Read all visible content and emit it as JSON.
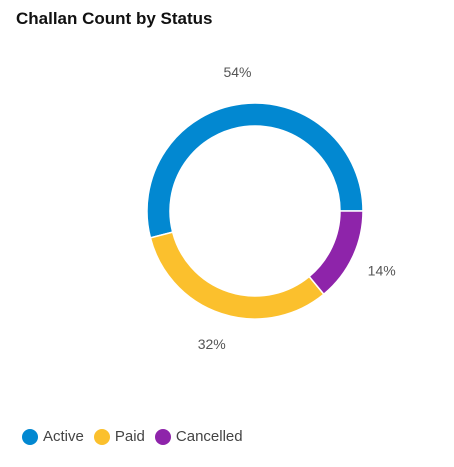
{
  "title": "Challan Count by Status",
  "chart_data": {
    "type": "pie",
    "variant": "donut",
    "title": "Challan Count by Status",
    "categories": [
      "Active",
      "Paid",
      "Cancelled"
    ],
    "values": [
      54,
      32,
      14
    ],
    "value_labels": [
      "54%",
      "32%",
      "14%"
    ],
    "colors": [
      "#0288d1",
      "#fbc02d",
      "#8e24aa"
    ],
    "legend_position": "bottom-left"
  }
}
